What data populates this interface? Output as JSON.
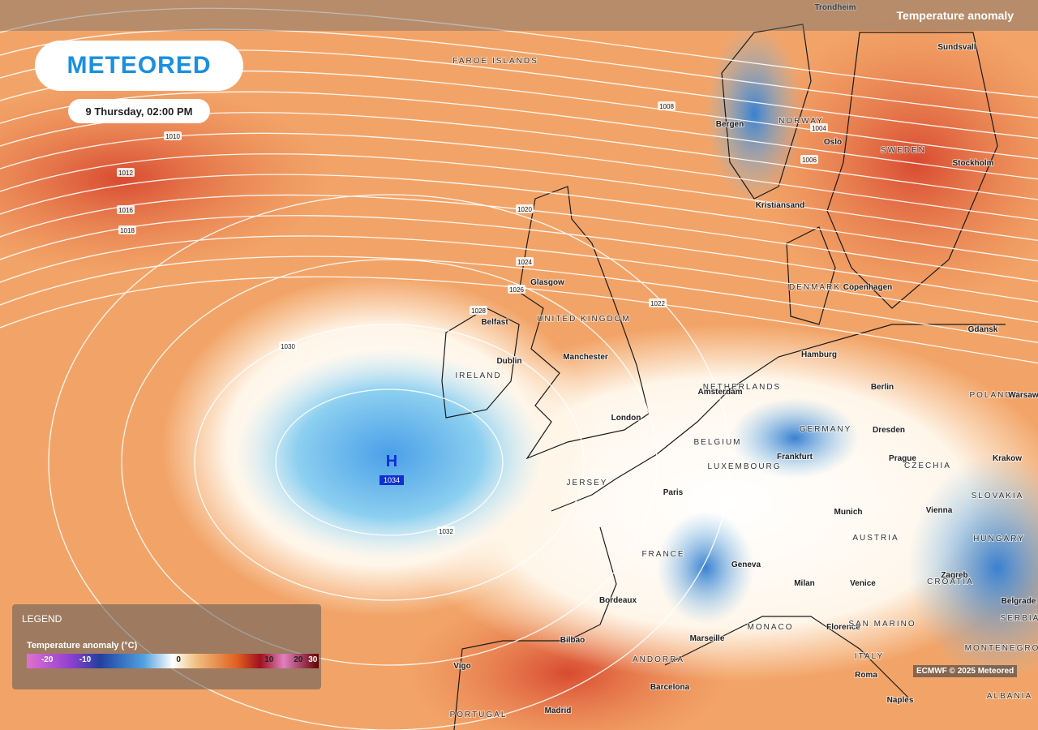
{
  "header": {
    "layer": "Temperature anomaly"
  },
  "logo": "METEORED",
  "time": "9 Thursday, 02:00 PM",
  "pressure_center": {
    "symbol": "H",
    "value": "1034"
  },
  "isobars": [
    "1008",
    "1010",
    "1012",
    "1016",
    "1018",
    "1020",
    "1022",
    "1024",
    "1026",
    "1028",
    "1030",
    "1032",
    "1004",
    "1006"
  ],
  "places": [
    "FAROE ISLANDS",
    "Trondheim",
    "Sundsvall",
    "NORWAY",
    "Bergen",
    "Oslo",
    "SWEDEN",
    "Stockholm",
    "Kristiansand",
    "DENMARK",
    "Copenhagen",
    "Gdansk",
    "Glasgow",
    "Belfast",
    "UNITED KINGDOM",
    "Dublin",
    "IRELAND",
    "Manchester",
    "London",
    "Hamburg",
    "Berlin",
    "NETHERLANDS",
    "Amsterdam",
    "GERMANY",
    "Dresden",
    "POLAND",
    "Warsaw",
    "BELGIUM",
    "Frankfurt",
    "Prague",
    "CZECHIA",
    "Krakow",
    "LUXEMBOURG",
    "JERSEY",
    "Paris",
    "SLOVAKIA",
    "Munich",
    "Vienna",
    "AUSTRIA",
    "HUNGARY",
    "FRANCE",
    "Geneva",
    "Milan",
    "Venice",
    "Zagreb",
    "CROATIA",
    "Bordeaux",
    "Belgrade",
    "MONACO",
    "Marseille",
    "Florence",
    "SAN MARINO",
    "SERBIA",
    "Bilbao",
    "ITALY",
    "MONTENEGRO",
    "ANDORRA",
    "Vigo",
    "Roma",
    "Barcelona",
    "Naples",
    "ALBANIA",
    "PORTUGAL",
    "Madrid"
  ],
  "legend": {
    "title": "LEGEND",
    "subtitle": "Temperature anomaly (°C)",
    "scale": [
      -20,
      -10,
      0,
      10,
      20,
      30
    ]
  },
  "attribution": "ECMWF © 2025 Meteored"
}
